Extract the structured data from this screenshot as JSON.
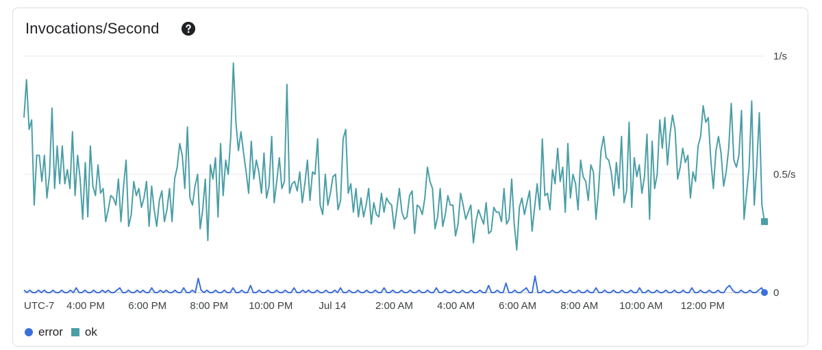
{
  "card": {
    "title": "Invocations/Second",
    "help_icon": "help-circle-icon"
  },
  "legend": {
    "error_label": "error",
    "ok_label": "ok"
  },
  "chart_data": {
    "type": "line",
    "title": "Invocations/Second",
    "timezone_label": "UTC-7",
    "x_ticks": [
      "4:00 PM",
      "6:00 PM",
      "8:00 PM",
      "10:00 PM",
      "Jul 14",
      "2:00 AM",
      "4:00 AM",
      "6:00 AM",
      "8:00 AM",
      "10:00 AM",
      "12:00 PM"
    ],
    "x_tick_hours": [
      2,
      4,
      6,
      8,
      10,
      12,
      14,
      16,
      18,
      20,
      22
    ],
    "x_range_hours": [
      0,
      24
    ],
    "y_ticks": [
      {
        "value": 0,
        "label": "0"
      },
      {
        "value": 0.5,
        "label": "0.5/s"
      },
      {
        "value": 1,
        "label": "1/s"
      }
    ],
    "ylim": [
      0,
      1
    ],
    "y_axis_side": "right",
    "grid": true,
    "legend_position": "bottom-left",
    "series": [
      {
        "name": "error",
        "color": "#3b6fd9",
        "end_marker": "circle",
        "values": [
          0.01,
          0.0,
          0.01,
          0.0,
          0.0,
          0.01,
          0.0,
          0.01,
          0.0,
          0.0,
          0.01,
          0.0,
          0.0,
          0.01,
          0.0,
          0.0,
          0.01,
          0.0,
          0.02,
          0.0,
          0.0,
          0.01,
          0.0,
          0.0,
          0.01,
          0.0,
          0.0,
          0.01,
          0.0,
          0.01,
          0.0,
          0.0,
          0.01,
          0.02,
          0.0,
          0.0,
          0.01,
          0.0,
          0.0,
          0.01,
          0.0,
          0.01,
          0.0,
          0.0,
          0.02,
          0.0,
          0.0,
          0.01,
          0.0,
          0.01,
          0.0,
          0.0,
          0.01,
          0.0,
          0.0,
          0.02,
          0.0,
          0.0,
          0.01,
          0.0,
          0.06,
          0.01,
          0.0,
          0.01,
          0.0,
          0.0,
          0.01,
          0.0,
          0.0,
          0.01,
          0.0,
          0.0,
          0.02,
          0.0,
          0.0,
          0.01,
          0.0,
          0.0,
          0.03,
          0.0,
          0.0,
          0.01,
          0.0,
          0.0,
          0.01,
          0.0,
          0.0,
          0.01,
          0.0,
          0.0,
          0.01,
          0.0,
          0.0,
          0.02,
          0.0,
          0.0,
          0.01,
          0.0,
          0.01,
          0.0,
          0.0,
          0.01,
          0.0,
          0.0,
          0.01,
          0.0,
          0.0,
          0.01,
          0.0,
          0.02,
          0.0,
          0.0,
          0.01,
          0.0,
          0.0,
          0.01,
          0.0,
          0.0,
          0.01,
          0.0,
          0.0,
          0.01,
          0.0,
          0.0,
          0.02,
          0.0,
          0.0,
          0.01,
          0.0,
          0.0,
          0.01,
          0.0,
          0.0,
          0.01,
          0.0,
          0.0,
          0.01,
          0.0,
          0.0,
          0.01,
          0.0,
          0.0,
          0.02,
          0.0,
          0.0,
          0.01,
          0.0,
          0.0,
          0.01,
          0.0,
          0.0,
          0.01,
          0.0,
          0.0,
          0.01,
          0.0,
          0.0,
          0.01,
          0.0,
          0.0,
          0.03,
          0.0,
          0.0,
          0.01,
          0.0,
          0.0,
          0.04,
          0.0,
          0.0,
          0.01,
          0.0,
          0.0,
          0.01,
          0.02,
          0.0,
          0.0,
          0.07,
          0.0,
          0.0,
          0.01,
          0.0,
          0.0,
          0.01,
          0.0,
          0.0,
          0.01,
          0.0,
          0.0,
          0.01,
          0.0,
          0.0,
          0.01,
          0.0,
          0.0,
          0.01,
          0.0,
          0.0,
          0.02,
          0.0,
          0.0,
          0.01,
          0.0,
          0.0,
          0.01,
          0.0,
          0.0,
          0.01,
          0.0,
          0.0,
          0.01,
          0.0,
          0.0,
          0.02,
          0.0,
          0.0,
          0.01,
          0.0,
          0.0,
          0.01,
          0.0,
          0.0,
          0.01,
          0.0,
          0.0,
          0.01,
          0.0,
          0.0,
          0.01,
          0.0,
          0.0,
          0.02,
          0.0,
          0.0,
          0.01,
          0.0,
          0.0,
          0.01,
          0.0,
          0.0,
          0.01,
          0.0,
          0.0,
          0.02,
          0.03,
          0.01,
          0.0,
          0.0,
          0.01,
          0.0,
          0.0,
          0.01,
          0.0,
          0.0,
          0.01,
          0.02,
          0.0
        ]
      },
      {
        "name": "ok",
        "color": "#4a9ea6",
        "end_marker": "square",
        "values": [
          0.74,
          0.9,
          0.69,
          0.73,
          0.37,
          0.58,
          0.58,
          0.47,
          0.58,
          0.4,
          0.5,
          0.78,
          0.44,
          0.62,
          0.46,
          0.62,
          0.46,
          0.52,
          0.44,
          0.68,
          0.41,
          0.58,
          0.48,
          0.31,
          0.55,
          0.32,
          0.62,
          0.45,
          0.41,
          0.54,
          0.42,
          0.44,
          0.3,
          0.35,
          0.41,
          0.4,
          0.37,
          0.48,
          0.3,
          0.45,
          0.56,
          0.28,
          0.33,
          0.47,
          0.41,
          0.44,
          0.36,
          0.4,
          0.47,
          0.28,
          0.45,
          0.35,
          0.28,
          0.39,
          0.43,
          0.3,
          0.35,
          0.44,
          0.3,
          0.48,
          0.53,
          0.63,
          0.58,
          0.44,
          0.7,
          0.4,
          0.37,
          0.45,
          0.5,
          0.27,
          0.35,
          0.48,
          0.22,
          0.54,
          0.48,
          0.57,
          0.32,
          0.63,
          0.41,
          0.56,
          0.5,
          0.66,
          0.97,
          0.72,
          0.6,
          0.68,
          0.59,
          0.51,
          0.42,
          0.64,
          0.48,
          0.56,
          0.51,
          0.42,
          0.59,
          0.4,
          0.45,
          0.66,
          0.38,
          0.47,
          0.57,
          0.44,
          0.47,
          0.88,
          0.42,
          0.46,
          0.47,
          0.43,
          0.51,
          0.38,
          0.46,
          0.56,
          0.39,
          0.51,
          0.5,
          0.65,
          0.37,
          0.33,
          0.5,
          0.37,
          0.42,
          0.49,
          0.5,
          0.35,
          0.39,
          0.65,
          0.69,
          0.42,
          0.46,
          0.34,
          0.44,
          0.32,
          0.4,
          0.32,
          0.37,
          0.44,
          0.29,
          0.38,
          0.33,
          0.32,
          0.42,
          0.34,
          0.4,
          0.38,
          0.37,
          0.27,
          0.35,
          0.44,
          0.34,
          0.31,
          0.32,
          0.41,
          0.43,
          0.25,
          0.37,
          0.36,
          0.33,
          0.4,
          0.53,
          0.47,
          0.44,
          0.27,
          0.32,
          0.44,
          0.28,
          0.33,
          0.41,
          0.37,
          0.37,
          0.24,
          0.29,
          0.42,
          0.37,
          0.31,
          0.34,
          0.37,
          0.21,
          0.3,
          0.35,
          0.32,
          0.29,
          0.38,
          0.25,
          0.26,
          0.36,
          0.34,
          0.34,
          0.3,
          0.44,
          0.29,
          0.31,
          0.48,
          0.29,
          0.18,
          0.36,
          0.4,
          0.33,
          0.38,
          0.43,
          0.26,
          0.36,
          0.46,
          0.35,
          0.65,
          0.41,
          0.42,
          0.35,
          0.52,
          0.46,
          0.61,
          0.47,
          0.53,
          0.34,
          0.63,
          0.4,
          0.5,
          0.46,
          0.35,
          0.56,
          0.49,
          0.47,
          0.39,
          0.54,
          0.51,
          0.31,
          0.43,
          0.6,
          0.66,
          0.57,
          0.56,
          0.51,
          0.41,
          0.55,
          0.44,
          0.66,
          0.38,
          0.43,
          0.72,
          0.36,
          0.57,
          0.49,
          0.54,
          0.42,
          0.49,
          0.67,
          0.31,
          0.64,
          0.44,
          0.5,
          0.73,
          0.61,
          0.74,
          0.54,
          0.67,
          0.75,
          0.69,
          0.48,
          0.53,
          0.61,
          0.55,
          0.58,
          0.4,
          0.51,
          0.47,
          0.62,
          0.66,
          0.79,
          0.72,
          0.74,
          0.56,
          0.44,
          0.6,
          0.66,
          0.59,
          0.45,
          0.51,
          0.61,
          0.8,
          0.56,
          0.53,
          0.58,
          0.77,
          0.31,
          0.42,
          0.53,
          0.81,
          0.37,
          0.54,
          0.76,
          0.37,
          0.3
        ]
      }
    ]
  }
}
